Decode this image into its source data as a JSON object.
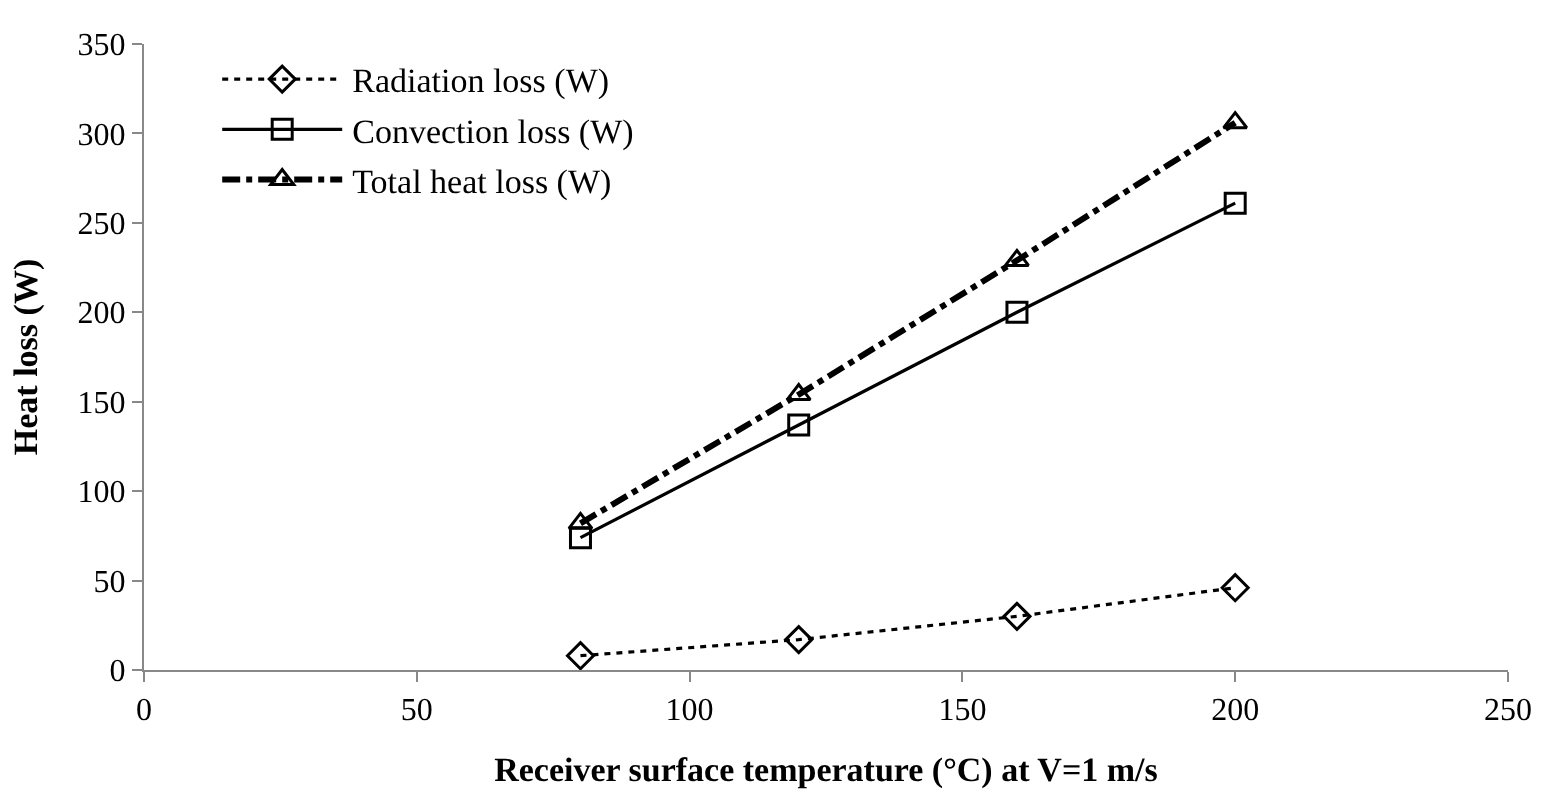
{
  "chart_data": {
    "type": "line",
    "xlabel": "Receiver surface temperature (°C) at V=1 m/s",
    "ylabel": "Heat loss (W)",
    "x": [
      80,
      120,
      160,
      200
    ],
    "series": [
      {
        "name": "Radiation loss (W)",
        "color": "#000000",
        "values": [
          8,
          17,
          30,
          46
        ],
        "marker": "diamond",
        "line_style": "dotted"
      },
      {
        "name": "Convection loss (W)",
        "color": "#000000",
        "values": [
          74,
          137,
          200,
          261
        ],
        "marker": "square",
        "line_style": "solid"
      },
      {
        "name": "Total heat loss (W)",
        "color": "#000000",
        "values": [
          82,
          154,
          229,
          306
        ],
        "marker": "triangle",
        "line_style": "dashed"
      }
    ],
    "xlim": [
      0,
      250
    ],
    "xticks": [
      0,
      50,
      100,
      150,
      200,
      250
    ],
    "ylim": [
      0,
      350
    ],
    "yticks": [
      0,
      50,
      100,
      150,
      200,
      250,
      300,
      350
    ],
    "grid": false,
    "legend": "top left"
  }
}
